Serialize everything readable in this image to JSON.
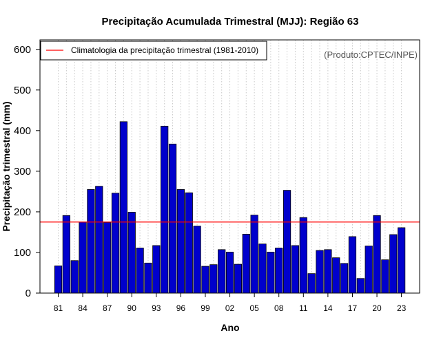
{
  "chart_data": {
    "type": "bar",
    "title": "Precipitação Acumulada Trimestral (MJJ): Região 63",
    "xlabel": "Ano",
    "ylabel": "Precipitação trimestral (mm)",
    "ylim": [
      0,
      620
    ],
    "yticks": [
      0,
      100,
      200,
      300,
      400,
      500,
      600
    ],
    "years": [
      1981,
      1982,
      1983,
      1984,
      1985,
      1986,
      1987,
      1988,
      1989,
      1990,
      1991,
      1992,
      1993,
      1994,
      1995,
      1996,
      1997,
      1998,
      1999,
      2000,
      2001,
      2002,
      2003,
      2004,
      2005,
      2006,
      2007,
      2008,
      2009,
      2010,
      2011,
      2012,
      2013,
      2014,
      2015,
      2016,
      2017,
      2018,
      2019,
      2020,
      2021,
      2022,
      2023
    ],
    "values": [
      67,
      191,
      80,
      175,
      255,
      263,
      174,
      246,
      422,
      199,
      111,
      74,
      117,
      411,
      367,
      255,
      247,
      165,
      66,
      70,
      107,
      101,
      71,
      145,
      192,
      121,
      101,
      111,
      253,
      117,
      186,
      48,
      105,
      107,
      87,
      73,
      139,
      36,
      116,
      191,
      82,
      144,
      161
    ],
    "xtick_labels": [
      {
        "year": 1981,
        "label": "81"
      },
      {
        "year": 1984,
        "label": "84"
      },
      {
        "year": 1987,
        "label": "87"
      },
      {
        "year": 1990,
        "label": "90"
      },
      {
        "year": 1993,
        "label": "93"
      },
      {
        "year": 1996,
        "label": "96"
      },
      {
        "year": 1999,
        "label": "99"
      },
      {
        "year": 2002,
        "label": "02"
      },
      {
        "year": 2005,
        "label": "05"
      },
      {
        "year": 2008,
        "label": "08"
      },
      {
        "year": 2011,
        "label": "11"
      },
      {
        "year": 2014,
        "label": "14"
      },
      {
        "year": 2017,
        "label": "17"
      },
      {
        "year": 2020,
        "label": "20"
      },
      {
        "year": 2023,
        "label": "23"
      }
    ],
    "climatology": {
      "value": 175,
      "label": "Climatologia da precipitação trimestral (1981-2010)",
      "color": "#ff0000"
    },
    "legend_position": "top-left",
    "grid": "vertical dotted",
    "bar_color": "#0000cc",
    "bar_edge_color": "#000000",
    "credit": "(Produto:CPTEC/INPE)"
  }
}
